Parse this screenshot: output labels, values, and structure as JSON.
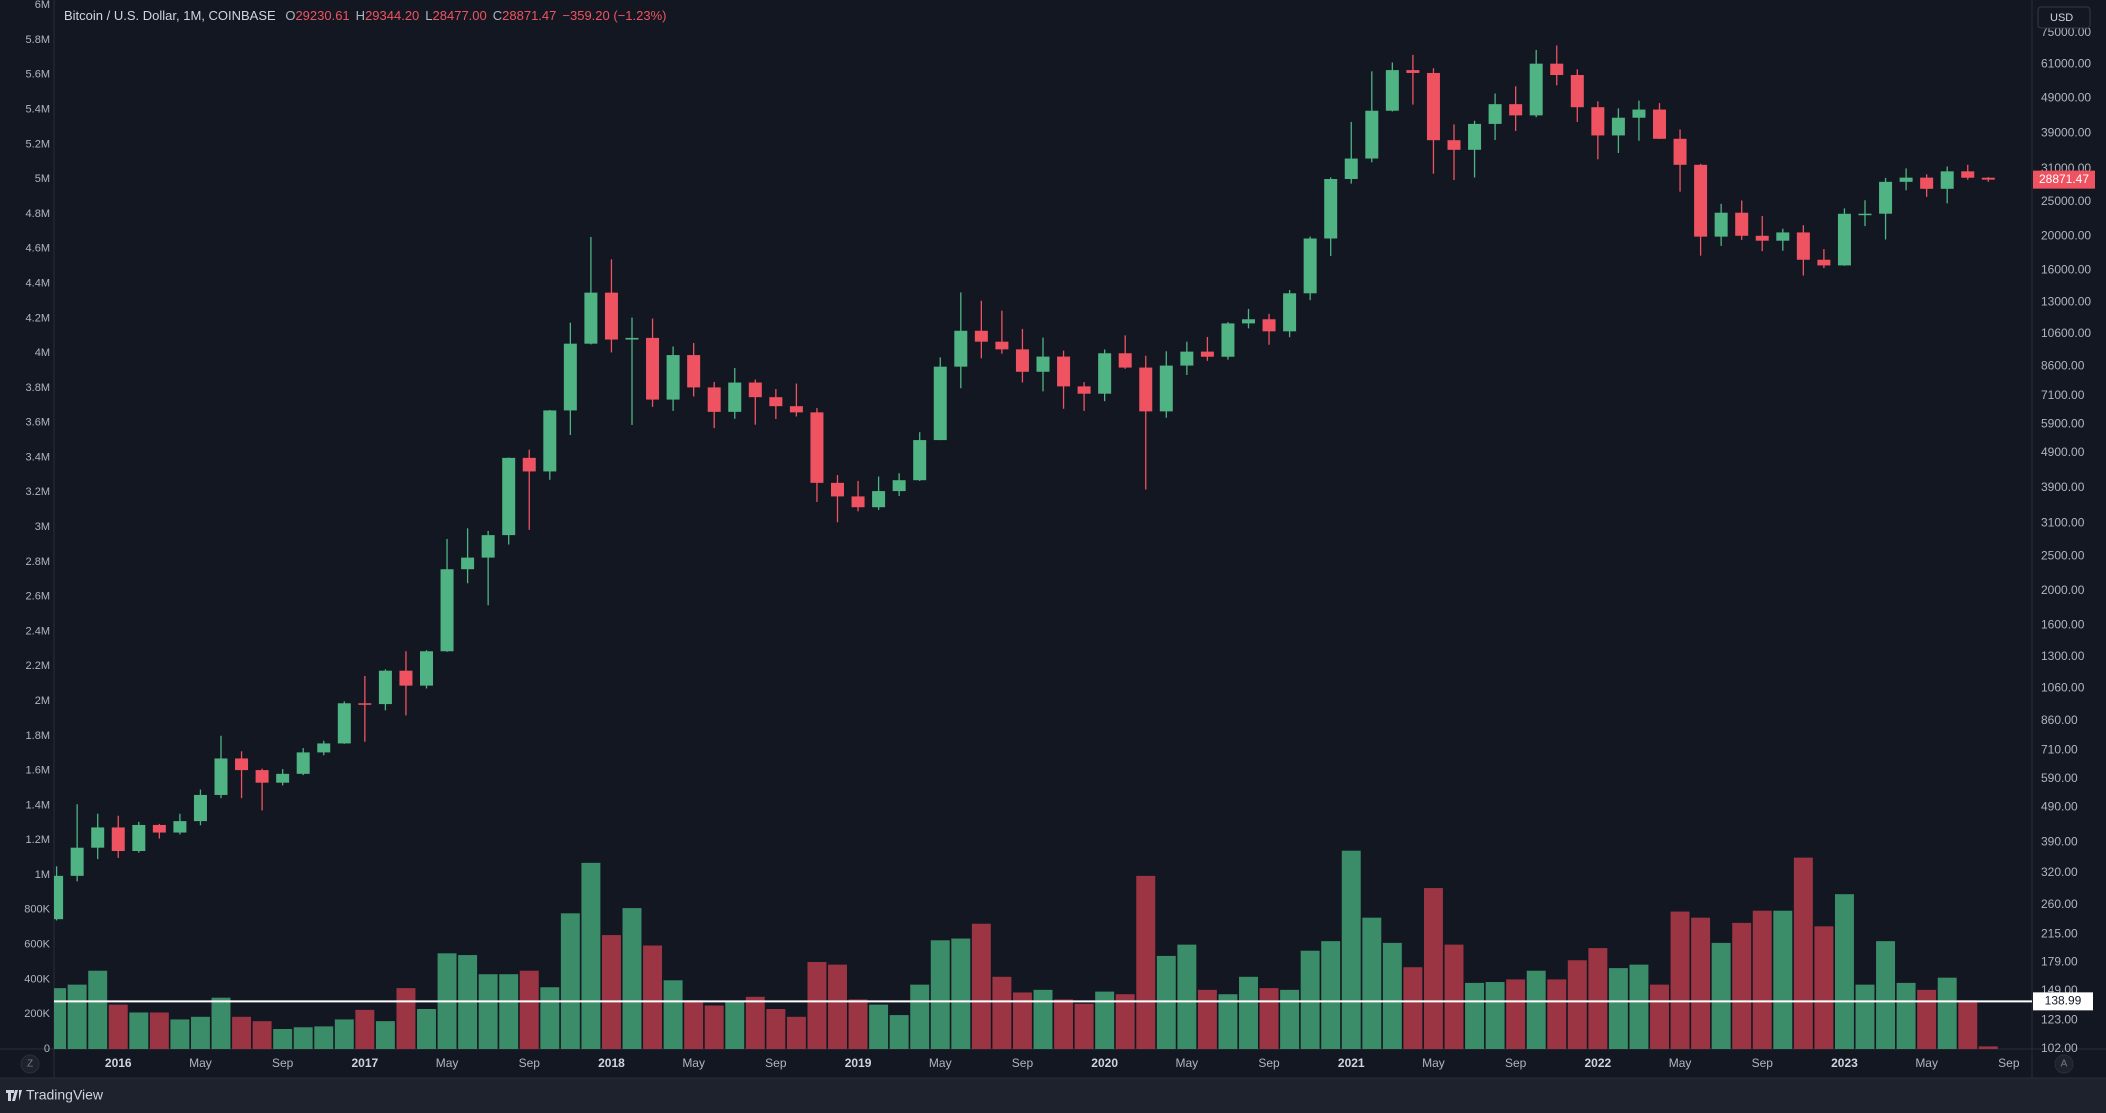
{
  "chart_data": {
    "type": "candlestick",
    "title": "Bitcoin / U.S. Dollar, 1M, COINBASE",
    "legend_values": [
      {
        "key": "O",
        "text": "29230.61"
      },
      {
        "key": "H",
        "text": "29344.20"
      },
      {
        "key": "L",
        "text": "28477.00"
      },
      {
        "key": "C",
        "text": "28871.47"
      }
    ],
    "change": "−359.20 (−1.23%)",
    "x": [
      "2015-10",
      "2015-11",
      "2015-12",
      "2016-01",
      "2016-02",
      "2016-03",
      "2016-04",
      "2016-05",
      "2016-06",
      "2016-07",
      "2016-08",
      "2016-09",
      "2016-10",
      "2016-11",
      "2016-12",
      "2017-01",
      "2017-02",
      "2017-03",
      "2017-04",
      "2017-05",
      "2017-06",
      "2017-07",
      "2017-08",
      "2017-09",
      "2017-10",
      "2017-11",
      "2017-12",
      "2018-01",
      "2018-02",
      "2018-03",
      "2018-04",
      "2018-05",
      "2018-06",
      "2018-07",
      "2018-08",
      "2018-09",
      "2018-10",
      "2018-11",
      "2018-12",
      "2019-01",
      "2019-02",
      "2019-03",
      "2019-04",
      "2019-05",
      "2019-06",
      "2019-07",
      "2019-08",
      "2019-09",
      "2019-10",
      "2019-11",
      "2019-12",
      "2020-01",
      "2020-02",
      "2020-03",
      "2020-04",
      "2020-05",
      "2020-06",
      "2020-07",
      "2020-08",
      "2020-09",
      "2020-10",
      "2020-11",
      "2020-12",
      "2021-01",
      "2021-02",
      "2021-03",
      "2021-04",
      "2021-05",
      "2021-06",
      "2021-07",
      "2021-08",
      "2021-09",
      "2021-10",
      "2021-11",
      "2021-12",
      "2022-01",
      "2022-02",
      "2022-03",
      "2022-04",
      "2022-05",
      "2022-06",
      "2022-07",
      "2022-08",
      "2022-09",
      "2022-10",
      "2022-11",
      "2022-12",
      "2023-01",
      "2023-02",
      "2023-03",
      "2023-04",
      "2023-05",
      "2023-06",
      "2023-07",
      "2023-08"
    ],
    "open": [
      237,
      314,
      377,
      430,
      369,
      437,
      416,
      448,
      531,
      673,
      624,
      575,
      609,
      700,
      742,
      963,
      958,
      1190,
      1080,
      1350,
      2300,
      2480,
      2870,
      4740,
      4340,
      6450,
      9950,
      13860,
      10220,
      10330,
      6920,
      9240,
      7490,
      6390,
      7730,
      7030,
      6630,
      6370,
      4030,
      3690,
      3440,
      3820,
      4100,
      5320,
      8570,
      10820,
      10080,
      9590,
      8290,
      9150,
      7540,
      7190,
      9350,
      8520,
      6410,
      8630,
      9450,
      9140,
      11350,
      11660,
      10780,
      13800,
      19700,
      28990,
      33110,
      45160,
      58800,
      57720,
      37300,
      35040,
      41460,
      47130,
      43820,
      61310,
      56950,
      46210,
      38470,
      43160,
      45510,
      37640,
      31790,
      19940,
      23290,
      20050,
      19420,
      20490,
      17160,
      16540,
      23130,
      23140,
      28460,
      29250,
      27200,
      30470,
      29230.61
    ],
    "high": [
      334,
      500,
      470,
      464,
      446,
      440,
      470,
      550,
      780,
      705,
      630,
      628,
      720,
      755,
      975,
      1150,
      1200,
      1350,
      1360,
      2800,
      3000,
      2950,
      4750,
      5000,
      6470,
      11400,
      19890,
      17200,
      11790,
      11710,
      9770,
      9990,
      7760,
      8500,
      7880,
      7410,
      7680,
      6550,
      4240,
      4080,
      4200,
      4290,
      5600,
      9100,
      13880,
      13150,
      12330,
      10950,
      10350,
      9510,
      7750,
      9580,
      10500,
      9200,
      9470,
      10080,
      10390,
      11450,
      12470,
      12080,
      14100,
      19950,
      29300,
      41990,
      58330,
      61790,
      64900,
      59520,
      41330,
      42320,
      50500,
      52920,
      67020,
      69000,
      59100,
      47990,
      45850,
      48240,
      47460,
      40000,
      31990,
      24670,
      25210,
      22800,
      20990,
      21480,
      18390,
      23950,
      25250,
      29190,
      31060,
      29880,
      31440,
      31800,
      29344.2
    ],
    "low": [
      235,
      303,
      350,
      353,
      365,
      400,
      411,
      436,
      520,
      520,
      480,
      565,
      604,
      687,
      740,
      750,
      920,
      890,
      1060,
      1345,
      2100,
      1820,
      2700,
      2970,
      4110,
      5500,
      9900,
      9400,
      5870,
      6600,
      6430,
      7060,
      5750,
      6110,
      5880,
      6100,
      6200,
      3560,
      3120,
      3350,
      3380,
      3700,
      4080,
      5320,
      7450,
      9050,
      9320,
      7730,
      7300,
      6520,
      6430,
      6850,
      8450,
      3860,
      6150,
      8120,
      8900,
      8970,
      10990,
      9880,
      10380,
      13200,
      17590,
      28130,
      32310,
      44950,
      47000,
      30000,
      28800,
      29280,
      37330,
      39600,
      43300,
      53260,
      42000,
      32950,
      34320,
      37160,
      37580,
      26700,
      17620,
      18780,
      19520,
      18150,
      18190,
      15480,
      16260,
      16500,
      21350,
      19570,
      26940,
      25810,
      24750,
      28860,
      28477
    ],
    "close": [
      314,
      377,
      430,
      369,
      437,
      416,
      448,
      531,
      673,
      624,
      575,
      609,
      700,
      742,
      963,
      958,
      1190,
      1080,
      1350,
      2300,
      2480,
      2870,
      4740,
      4340,
      6450,
      9950,
      13860,
      10220,
      10330,
      6920,
      9240,
      7490,
      6390,
      7730,
      7030,
      6630,
      6370,
      4030,
      3690,
      3440,
      3820,
      4100,
      5320,
      8570,
      10820,
      10080,
      9590,
      8290,
      9150,
      7540,
      7190,
      9350,
      8520,
      6410,
      8630,
      9450,
      9140,
      11350,
      11660,
      10780,
      13800,
      19700,
      28990,
      33110,
      45160,
      58800,
      57720,
      37300,
      35040,
      41460,
      47130,
      43820,
      61310,
      56950,
      46210,
      38470,
      43160,
      45510,
      37640,
      31790,
      19940,
      23290,
      20050,
      19420,
      20490,
      17160,
      16540,
      23130,
      23140,
      28460,
      29250,
      27200,
      30470,
      29230,
      28871.47
    ],
    "volume": [
      350000,
      370000,
      450000,
      255000,
      210000,
      210000,
      170000,
      185000,
      295000,
      185000,
      160000,
      115000,
      125000,
      130000,
      170000,
      225000,
      160000,
      350000,
      230000,
      550000,
      540000,
      430000,
      430000,
      450000,
      355000,
      780000,
      1070000,
      655000,
      810000,
      595000,
      395000,
      280000,
      250000,
      270000,
      300000,
      230000,
      185000,
      500000,
      485000,
      285000,
      255000,
      195000,
      370000,
      625000,
      635000,
      720000,
      415000,
      325000,
      340000,
      285000,
      260000,
      330000,
      315000,
      995000,
      535000,
      600000,
      340000,
      315000,
      415000,
      350000,
      340000,
      565000,
      620000,
      1140000,
      755000,
      610000,
      470000,
      925000,
      600000,
      380000,
      385000,
      400000,
      450000,
      400000,
      510000,
      580000,
      465000,
      485000,
      370000,
      790000,
      755000,
      610000,
      725000,
      795000,
      795000,
      1100000,
      705000,
      890000,
      370000,
      620000,
      380000,
      340000,
      410000,
      280000,
      15000
    ],
    "up_color": "#4fb383",
    "down_color": "#ef5361",
    "volume_up_color": "#3b8c69",
    "volume_down_color": "#9c3543",
    "yscale": "log",
    "y_axis_side": "right",
    "ylim": [
      102,
      92700
    ],
    "yticks": [
      {
        "value": 75000,
        "label": "75000.00"
      },
      {
        "value": 61000,
        "label": "61000.00"
      },
      {
        "value": 49000,
        "label": "49000.00"
      },
      {
        "value": 39000,
        "label": "39000.00"
      },
      {
        "value": 31000,
        "label": "31000.00"
      },
      {
        "value": 25000,
        "label": "25000.00"
      },
      {
        "value": 20000,
        "label": "20000.00"
      },
      {
        "value": 16000,
        "label": "16000.00"
      },
      {
        "value": 13000,
        "label": "13000.00"
      },
      {
        "value": 10600,
        "label": "10600.00"
      },
      {
        "value": 8600,
        "label": "8600.00"
      },
      {
        "value": 7100,
        "label": "7100.00"
      },
      {
        "value": 5900,
        "label": "5900.00"
      },
      {
        "value": 4900,
        "label": "4900.00"
      },
      {
        "value": 3900,
        "label": "3900.00"
      },
      {
        "value": 3100,
        "label": "3100.00"
      },
      {
        "value": 2500,
        "label": "2500.00"
      },
      {
        "value": 2000,
        "label": "2000.00"
      },
      {
        "value": 1600,
        "label": "1600.00"
      },
      {
        "value": 1300,
        "label": "1300.00"
      },
      {
        "value": 1060,
        "label": "1060.00"
      },
      {
        "value": 860,
        "label": "860.00"
      },
      {
        "value": 710,
        "label": "710.00"
      },
      {
        "value": 590,
        "label": "590.00"
      },
      {
        "value": 490,
        "label": "490.00"
      },
      {
        "value": 390,
        "label": "390.00"
      },
      {
        "value": 320,
        "label": "320.00"
      },
      {
        "value": 260,
        "label": "260.00"
      },
      {
        "value": 215,
        "label": "215.00"
      },
      {
        "value": 179,
        "label": "179.00"
      },
      {
        "value": 149,
        "label": "149.00"
      },
      {
        "value": 123,
        "label": "123.00"
      },
      {
        "value": 102,
        "label": "102.00"
      }
    ],
    "y2_axis_side": "left",
    "y2lim": [
      0,
      6030000
    ],
    "y2ticks": [
      0,
      {
        "value": 200000,
        "label": "200K"
      },
      {
        "value": 400000,
        "label": "400K"
      },
      {
        "value": 600000,
        "label": "600K"
      },
      {
        "value": 800000,
        "label": "800K"
      },
      {
        "value": 1000000,
        "label": "1M"
      },
      {
        "value": 1200000,
        "label": "1.2M"
      },
      {
        "value": 1400000,
        "label": "1.4M"
      },
      {
        "value": 1600000,
        "label": "1.6M"
      },
      {
        "value": 1800000,
        "label": "1.8M"
      },
      {
        "value": 2000000,
        "label": "2M"
      },
      {
        "value": 2200000,
        "label": "2.2M"
      },
      {
        "value": 2400000,
        "label": "2.4M"
      },
      {
        "value": 2600000,
        "label": "2.6M"
      },
      {
        "value": 2800000,
        "label": "2.8M"
      },
      {
        "value": 3000000,
        "label": "3M"
      },
      {
        "value": 3200000,
        "label": "3.2M"
      },
      {
        "value": 3400000,
        "label": "3.4M"
      },
      {
        "value": 3600000,
        "label": "3.6M"
      },
      {
        "value": 3800000,
        "label": "3.8M"
      },
      {
        "value": 4000000,
        "label": "4M"
      },
      {
        "value": 4200000,
        "label": "4.2M"
      },
      {
        "value": 4400000,
        "label": "4.4M"
      },
      {
        "value": 4600000,
        "label": "4.6M"
      },
      {
        "value": 4800000,
        "label": "4.8M"
      },
      {
        "value": 5000000,
        "label": "5M"
      },
      {
        "value": 5200000,
        "label": "5.2M"
      },
      {
        "value": 5400000,
        "label": "5.4M"
      },
      {
        "value": 5600000,
        "label": "5.6M"
      },
      {
        "value": 5800000,
        "label": "5.8M"
      },
      {
        "value": 6000000,
        "label": "6M"
      }
    ],
    "xticks": [
      {
        "value": "2016-01",
        "label": "2016"
      },
      {
        "value": "2016-05",
        "label": "May"
      },
      {
        "value": "2016-09",
        "label": "Sep"
      },
      {
        "value": "2017-01",
        "label": "2017"
      },
      {
        "value": "2017-05",
        "label": "May"
      },
      {
        "value": "2017-09",
        "label": "Sep"
      },
      {
        "value": "2018-01",
        "label": "2018"
      },
      {
        "value": "2018-05",
        "label": "May"
      },
      {
        "value": "2018-09",
        "label": "Sep"
      },
      {
        "value": "2019-01",
        "label": "2019"
      },
      {
        "value": "2019-05",
        "label": "May"
      },
      {
        "value": "2019-09",
        "label": "Sep"
      },
      {
        "value": "2020-01",
        "label": "2020"
      },
      {
        "value": "2020-05",
        "label": "May"
      },
      {
        "value": "2020-09",
        "label": "Sep"
      },
      {
        "value": "2021-01",
        "label": "2021"
      },
      {
        "value": "2021-05",
        "label": "May"
      },
      {
        "value": "2021-09",
        "label": "Sep"
      },
      {
        "value": "2022-01",
        "label": "2022"
      },
      {
        "value": "2022-05",
        "label": "May"
      },
      {
        "value": "2022-09",
        "label": "Sep"
      },
      {
        "value": "2023-01",
        "label": "2023"
      },
      {
        "value": "2023-05",
        "label": "May"
      },
      {
        "value": "2023-09",
        "label": "Sep"
      }
    ],
    "grid": false,
    "hline": {
      "value": 138.99,
      "color": "#ffffff"
    }
  },
  "ui": {
    "currency": "USD",
    "brand": "TradingView",
    "left_button": "Z",
    "right_button": "A"
  }
}
